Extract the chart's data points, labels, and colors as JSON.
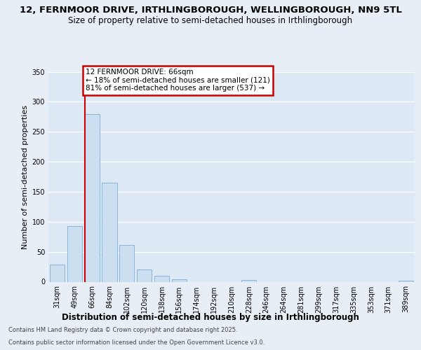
{
  "title1": "12, FERNMOOR DRIVE, IRTHLINGBOROUGH, WELLINGBOROUGH, NN9 5TL",
  "title2": "Size of property relative to semi-detached houses in Irthlingborough",
  "xlabel": "Distribution of semi-detached houses by size in Irthlingborough",
  "ylabel": "Number of semi-detached properties",
  "footnote1": "Contains HM Land Registry data © Crown copyright and database right 2025.",
  "footnote2": "Contains public sector information licensed under the Open Government Licence v3.0.",
  "annotation_title": "12 FERNMOOR DRIVE: 66sqm",
  "annotation_line1": "← 18% of semi-detached houses are smaller (121)",
  "annotation_line2": "81% of semi-detached houses are larger (537) →",
  "bar_labels": [
    "31sqm",
    "49sqm",
    "66sqm",
    "84sqm",
    "102sqm",
    "120sqm",
    "138sqm",
    "156sqm",
    "174sqm",
    "192sqm",
    "210sqm",
    "228sqm",
    "246sqm",
    "264sqm",
    "281sqm",
    "299sqm",
    "317sqm",
    "335sqm",
    "353sqm",
    "371sqm",
    "389sqm"
  ],
  "bar_values": [
    29,
    93,
    280,
    165,
    61,
    20,
    10,
    4,
    0,
    0,
    0,
    3,
    0,
    0,
    0,
    0,
    0,
    0,
    0,
    0,
    2
  ],
  "bar_color": "#ccdff0",
  "bar_edge_color": "#7aafd4",
  "subject_bar_index": 2,
  "vline_color": "#cc0000",
  "annotation_box_facecolor": "#ffffff",
  "annotation_box_edgecolor": "#cc0000",
  "ylim": [
    0,
    350
  ],
  "yticks": [
    0,
    50,
    100,
    150,
    200,
    250,
    300,
    350
  ],
  "fig_bg": "#e8eef5",
  "plot_bg": "#dce8f4",
  "grid_color": "#ffffff",
  "title1_fontsize": 9.5,
  "title2_fontsize": 8.5,
  "ylabel_fontsize": 8,
  "xlabel_fontsize": 8.5,
  "tick_fontsize": 7,
  "annotation_fontsize": 7.5,
  "footnote_fontsize": 6.0
}
